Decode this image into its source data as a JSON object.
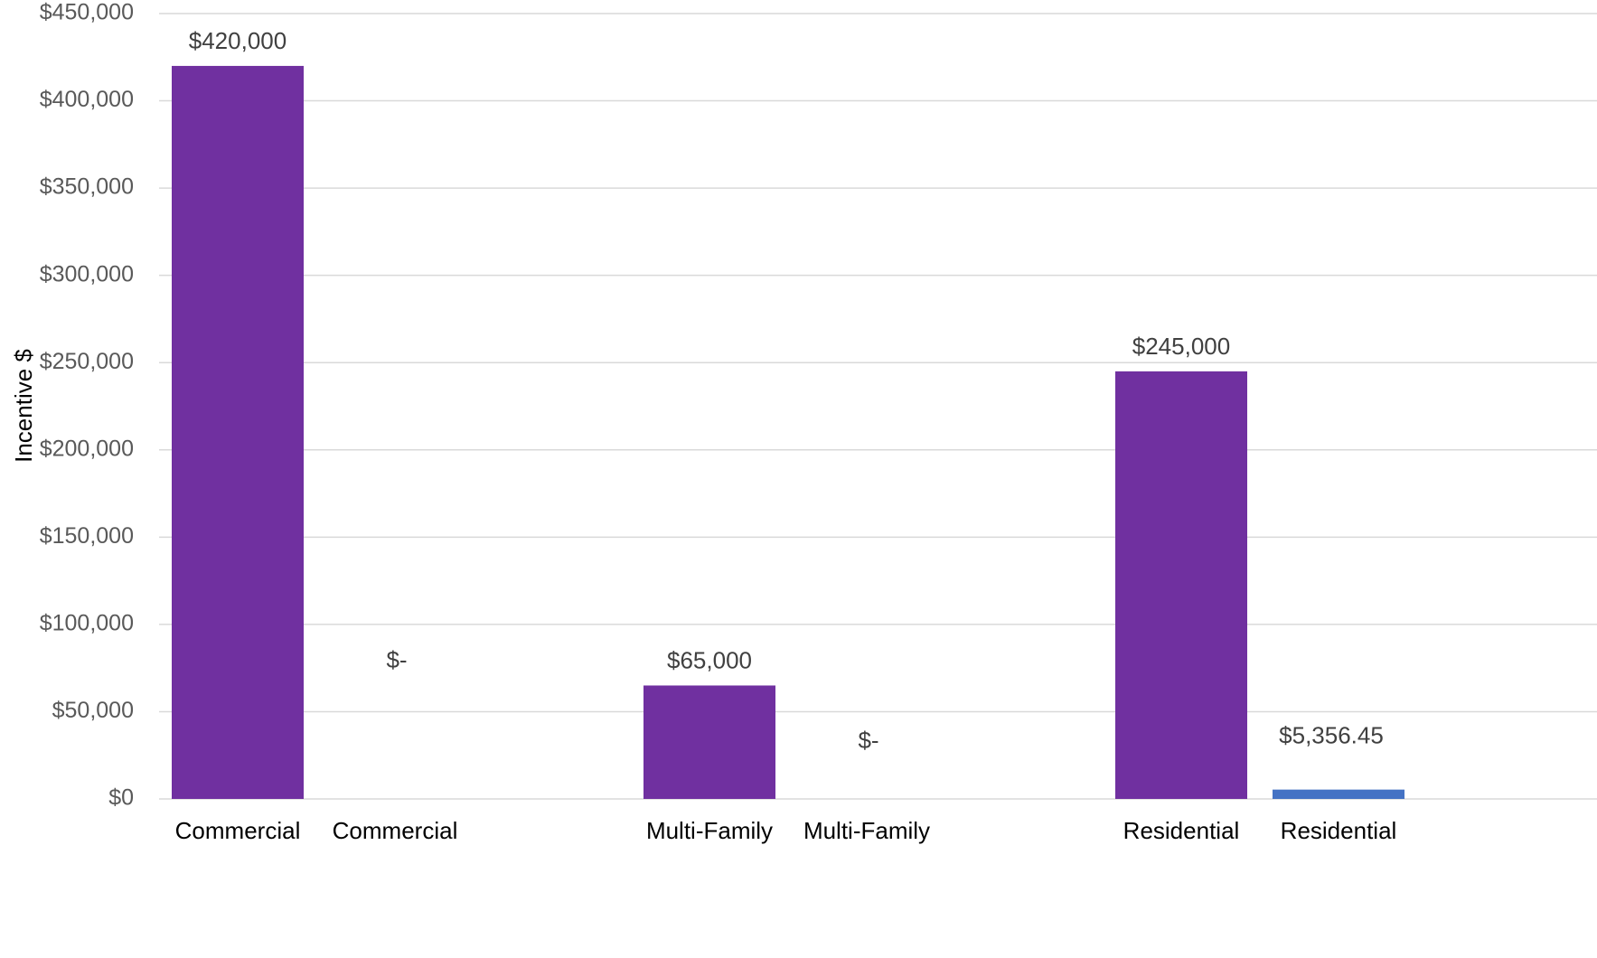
{
  "chart_data": {
    "type": "bar",
    "ylabel": "Incentive $",
    "xlabel": "",
    "ylim": [
      0,
      450000
    ],
    "y_ticks": [
      0,
      50000,
      100000,
      150000,
      200000,
      250000,
      300000,
      350000,
      400000,
      450000
    ],
    "y_tick_labels": [
      "$0",
      "$50,000",
      "$100,000",
      "$150,000",
      "$200,000",
      "$250,000",
      "$300,000",
      "$350,000",
      "$400,000",
      "$450,000"
    ],
    "grid": true,
    "legend": "none",
    "bars": [
      {
        "category": "Commercial",
        "value": 420000,
        "label": "$420,000",
        "color": "#7030a0"
      },
      {
        "category": "Commercial",
        "value": 0,
        "label": "$-",
        "color": "#4472c4"
      },
      {
        "category": "Multi-Family",
        "value": 65000,
        "label": "$65,000",
        "color": "#7030a0"
      },
      {
        "category": "Multi-Family",
        "value": 0,
        "label": "$-",
        "color": "#4472c4"
      },
      {
        "category": "Residential",
        "value": 245000,
        "label": "$245,000",
        "color": "#7030a0"
      },
      {
        "category": "Residential",
        "value": 5356.45,
        "label": "$5,356.45",
        "color": "#4472c4"
      }
    ]
  }
}
